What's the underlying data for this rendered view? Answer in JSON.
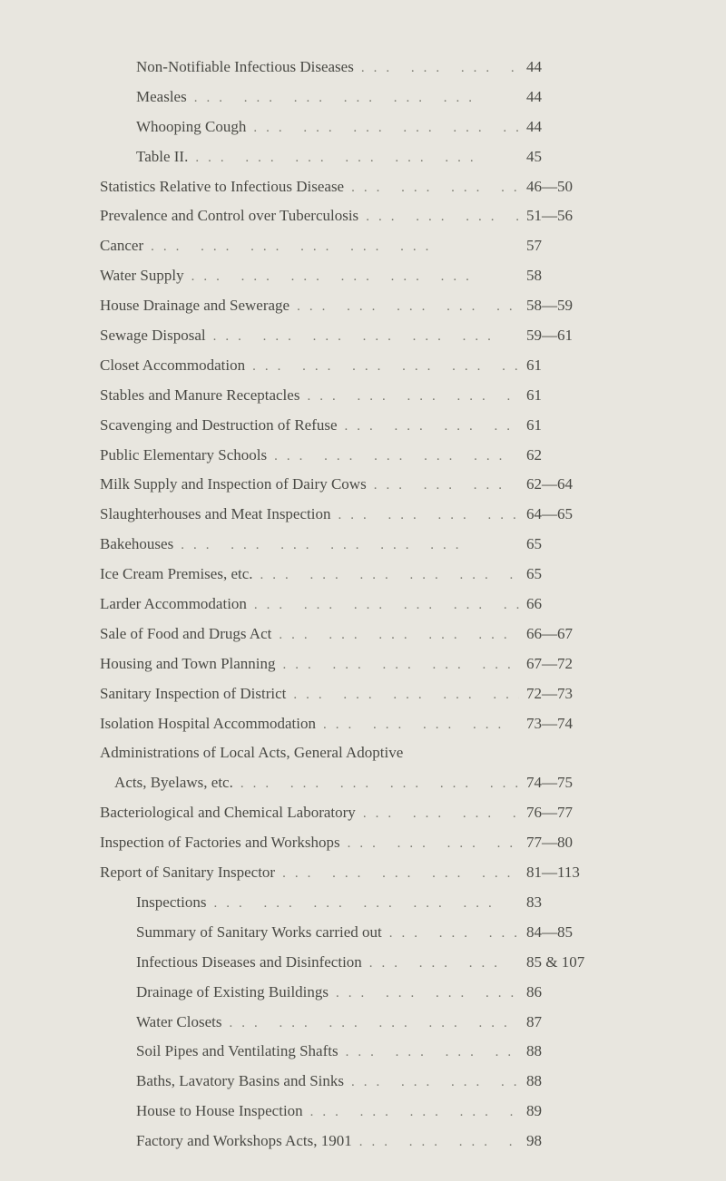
{
  "background_color": "#e8e6df",
  "text_color": "#4a4a45",
  "font_size": 17,
  "entries": [
    {
      "label": "Non-Notifiable Infectious Diseases",
      "page": "44",
      "indent": 1
    },
    {
      "label": "Measles",
      "page": "44",
      "indent": 1
    },
    {
      "label": "Whooping Cough",
      "page": "44",
      "indent": 1
    },
    {
      "label": "Table II.",
      "page": "45",
      "indent": 1
    },
    {
      "label": "Statistics Relative to Infectious Disease",
      "page": "46—50",
      "indent": 0
    },
    {
      "label": "Prevalence and Control over Tuberculosis",
      "page": "51—56",
      "indent": 0
    },
    {
      "label": "Cancer",
      "page": "57",
      "indent": 0
    },
    {
      "label": "Water Supply",
      "page": "58",
      "indent": 0
    },
    {
      "label": "House Drainage and Sewerage",
      "page": "58—59",
      "indent": 0
    },
    {
      "label": "Sewage Disposal",
      "page": "59—61",
      "indent": 0
    },
    {
      "label": "Closet Accommodation",
      "page": "61",
      "indent": 0
    },
    {
      "label": "Stables and Manure Receptacles",
      "page": "61",
      "indent": 0
    },
    {
      "label": "Scavenging and Destruction of Refuse",
      "page": "61",
      "indent": 0
    },
    {
      "label": "Public Elementary Schools",
      "page": "62",
      "indent": 0
    },
    {
      "label": "Milk Supply and Inspection of Dairy Cows",
      "page": "62—64",
      "indent": 0
    },
    {
      "label": "Slaughterhouses and Meat Inspection",
      "page": "64—65",
      "indent": 0
    },
    {
      "label": "Bakehouses",
      "page": "65",
      "indent": 0
    },
    {
      "label": "Ice Cream Premises, etc.",
      "page": "65",
      "indent": 0
    },
    {
      "label": "Larder Accommodation",
      "page": "66",
      "indent": 0
    },
    {
      "label": "Sale of Food and Drugs Act",
      "page": "66—67",
      "indent": 0
    },
    {
      "label": "Housing and Town Planning",
      "page": "67—72",
      "indent": 0
    },
    {
      "label": "Sanitary Inspection of District",
      "page": "72—73",
      "indent": 0
    },
    {
      "label": "Isolation Hospital Accommodation",
      "page": "73—74",
      "indent": 0
    },
    {
      "label": "Administrations of Local Acts, General Adoptive\n    Acts, Byelaws, etc.",
      "page": "74—75",
      "indent": 0
    },
    {
      "label": "Bacteriological and Chemical Laboratory",
      "page": "76—77",
      "indent": 0
    },
    {
      "label": "Inspection of Factories and Workshops",
      "page": "77—80",
      "indent": 0
    },
    {
      "label": "Report of Sanitary Inspector",
      "page": "81—113",
      "indent": 0
    },
    {
      "label": "Inspections",
      "page": "83",
      "indent": 1
    },
    {
      "label": "Summary of Sanitary Works carried out",
      "page": "84—85",
      "indent": 1
    },
    {
      "label": "Infectious Diseases and Disinfection",
      "page": "85 & 107",
      "indent": 1
    },
    {
      "label": "Drainage of Existing Buildings",
      "page": "86",
      "indent": 1
    },
    {
      "label": "Water Closets",
      "page": "87",
      "indent": 1
    },
    {
      "label": "Soil Pipes and Ventilating Shafts",
      "page": "88",
      "indent": 1
    },
    {
      "label": "Baths, Lavatory Basins and Sinks",
      "page": "88",
      "indent": 1
    },
    {
      "label": "House to House Inspection",
      "page": "89",
      "indent": 1
    },
    {
      "label": "Factory and Workshops Acts, 1901",
      "page": "98",
      "indent": 1
    }
  ]
}
